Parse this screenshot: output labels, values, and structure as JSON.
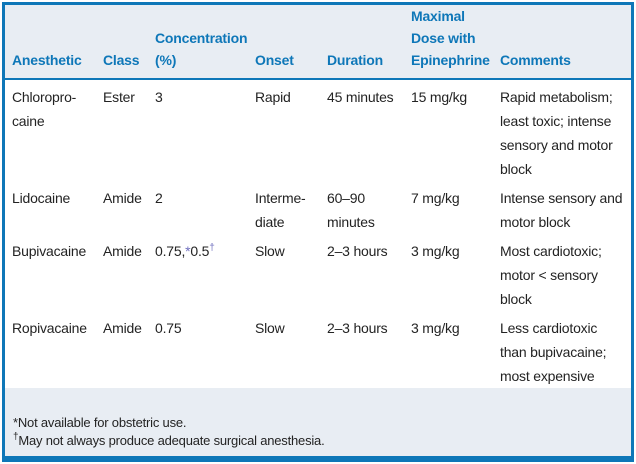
{
  "colors": {
    "accent_blue": "#0e77b8",
    "header_footer_bg": "#e8edf3",
    "body_bg": "#ffffff",
    "body_text": "#232323",
    "footnote_marker": "#6f6fbe"
  },
  "header": {
    "columns": [
      {
        "lines": [
          "Anesthetic"
        ]
      },
      {
        "lines": [
          "Class"
        ]
      },
      {
        "lines": [
          "Concentration",
          "(%)"
        ]
      },
      {
        "lines": [
          "Onset"
        ]
      },
      {
        "lines": [
          "Duration"
        ]
      },
      {
        "lines": [
          "Maximal",
          "Dose with",
          "Epinephrine"
        ]
      },
      {
        "lines": [
          "Comments"
        ]
      }
    ]
  },
  "rows": [
    {
      "anesthetic": "Chloropro-\ncaine",
      "class": "Ester",
      "concentration": "3",
      "onset": "Rapid",
      "duration": "45 minutes",
      "max_dose": "15 mg/kg",
      "comments": "Rapid metabolism; least toxic; intense sensory and motor block"
    },
    {
      "anesthetic": "Lidocaine",
      "class": "Amide",
      "concentration": "2",
      "onset": "Interme-\ndiate",
      "duration": "60–90\nminutes",
      "max_dose": "7 mg/kg",
      "comments": "Intense sensory and motor block"
    },
    {
      "anesthetic": "Bupivacaine",
      "class": "Amide",
      "concentration_parts": {
        "value1": "0.75,",
        "marker1": "*",
        "value2": "0.5",
        "marker2": "†"
      },
      "onset": "Slow",
      "duration": "2–3 hours",
      "max_dose": "3 mg/kg",
      "comments": "Most cardiotoxic; motor < sensory block"
    },
    {
      "anesthetic": "Ropivacaine",
      "class": "Amide",
      "concentration": "0.75",
      "onset": "Slow",
      "duration": "2–3 hours",
      "max_dose": "3 mg/kg",
      "comments": "Less cardiotoxic than bupivacaine; most expensive"
    }
  ],
  "footnotes": [
    {
      "marker": "*",
      "text": "Not available for obstetric use."
    },
    {
      "marker": "†",
      "text": "May not always produce adequate surgical anesthesia."
    }
  ]
}
